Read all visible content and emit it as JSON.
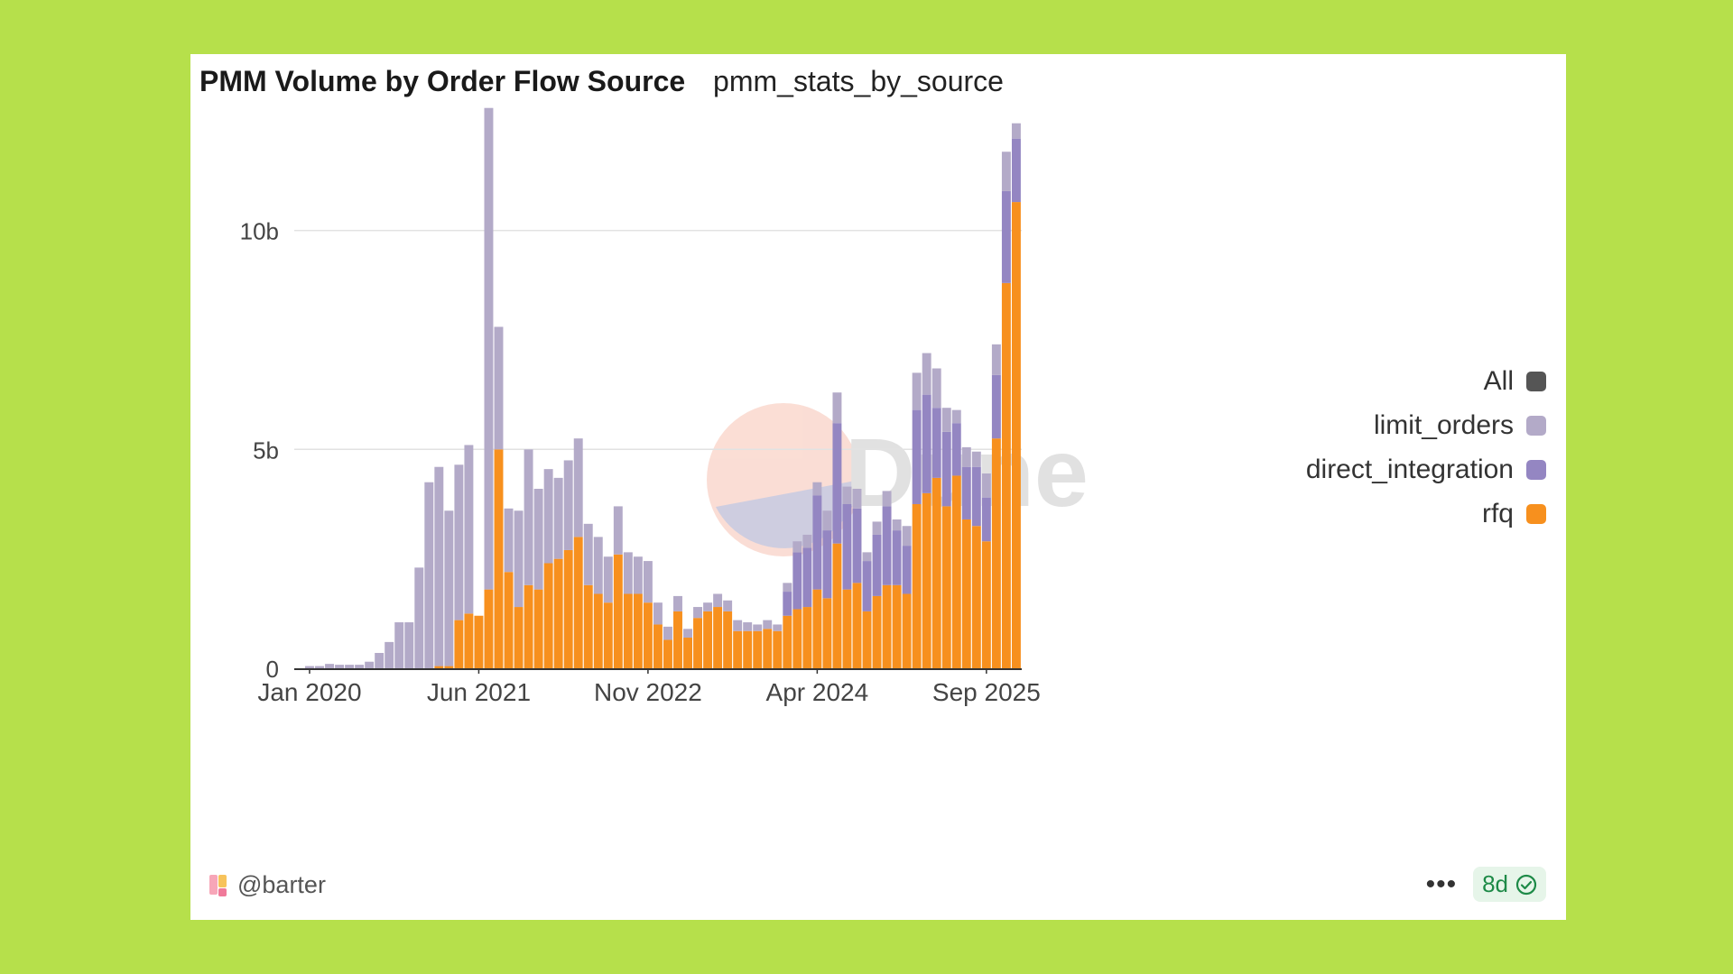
{
  "title": "PMM Volume by Order Flow Source",
  "subtitle": "pmm_stats_by_source",
  "watermark": "Dune",
  "footer": {
    "user": "@barter",
    "age_badge": "8d"
  },
  "colors": {
    "background": "#b6e04b",
    "all": "#555555",
    "limit_orders": "#b3aac8",
    "direct_integration": "#9486c2",
    "rfq": "#f7901e",
    "badge_text": "#1d8a47"
  },
  "legend": [
    {
      "label": "All",
      "color": "#555555"
    },
    {
      "label": "limit_orders",
      "color": "#b3aac8"
    },
    {
      "label": "direct_integration",
      "color": "#9486c2"
    },
    {
      "label": "rfq",
      "color": "#f7901e"
    }
  ],
  "chart_data": {
    "type": "bar",
    "stacked": true,
    "ylim": [
      0,
      13
    ],
    "yticks": [
      {
        "v": 0,
        "label": "0"
      },
      {
        "v": 5,
        "label": "5b"
      },
      {
        "v": 10,
        "label": "10b"
      }
    ],
    "xticks": [
      {
        "i": 0,
        "label": "Jan 2020"
      },
      {
        "i": 17,
        "label": "Jun 2021"
      },
      {
        "i": 34,
        "label": "Nov 2022"
      },
      {
        "i": 51,
        "label": "Apr 2024"
      },
      {
        "i": 68,
        "label": "Sep 2025"
      }
    ],
    "legend_position": "right",
    "grid": true,
    "series": [
      {
        "name": "rfq",
        "color": "#f7901e",
        "values": [
          0,
          0,
          0,
          0,
          0,
          0,
          0,
          0,
          0,
          0,
          0,
          0,
          0,
          0.05,
          0.05,
          1.1,
          1.25,
          1.2,
          1.8,
          5.0,
          2.2,
          1.4,
          1.9,
          1.8,
          2.4,
          2.5,
          2.7,
          3.0,
          1.9,
          1.7,
          1.5,
          2.6,
          1.7,
          1.7,
          1.5,
          1.0,
          0.65,
          1.3,
          0.7,
          1.15,
          1.3,
          1.4,
          1.3,
          0.85,
          0.85,
          0.85,
          0.9,
          0.85,
          1.2,
          1.35,
          1.4,
          1.8,
          1.6,
          2.85,
          1.8,
          1.95,
          1.3,
          1.65,
          1.9,
          1.9,
          1.7,
          3.75,
          4.0,
          4.35,
          3.7,
          4.4,
          3.4,
          3.25,
          2.9,
          5.25,
          8.8,
          10.65
        ]
      },
      {
        "name": "direct_integration",
        "color": "#9486c2",
        "values": [
          0,
          0,
          0,
          0,
          0,
          0,
          0,
          0,
          0,
          0,
          0,
          0,
          0,
          0,
          0,
          0,
          0,
          0,
          0,
          0,
          0,
          0,
          0,
          0,
          0,
          0,
          0,
          0,
          0,
          0,
          0,
          0,
          0,
          0,
          0,
          0,
          0,
          0,
          0,
          0,
          0,
          0,
          0,
          0,
          0,
          0,
          0,
          0,
          0.55,
          1.3,
          1.35,
          2.15,
          1.55,
          2.75,
          1.95,
          1.7,
          1.15,
          1.4,
          1.8,
          1.25,
          1.1,
          2.15,
          2.25,
          1.6,
          1.7,
          1.2,
          1.2,
          1.35,
          1.0,
          1.45,
          2.1,
          1.45
        ]
      },
      {
        "name": "limit_orders",
        "color": "#b3aac8",
        "values": [
          0.05,
          0.05,
          0.1,
          0.08,
          0.08,
          0.08,
          0.15,
          0.35,
          0.6,
          1.05,
          1.05,
          2.3,
          4.25,
          4.55,
          3.55,
          3.55,
          3.85,
          0,
          11.0,
          2.8,
          1.45,
          2.2,
          3.1,
          2.3,
          2.15,
          1.85,
          2.05,
          2.25,
          1.4,
          1.3,
          1.05,
          1.1,
          0.95,
          0.85,
          0.95,
          0.5,
          0.3,
          0.35,
          0.2,
          0.25,
          0.2,
          0.3,
          0.25,
          0.25,
          0.2,
          0.15,
          0.2,
          0.15,
          0.2,
          0.25,
          0.3,
          0.3,
          0.45,
          0.7,
          0.4,
          0.45,
          0.2,
          0.3,
          0.35,
          0.25,
          0.45,
          0.85,
          0.95,
          0.9,
          0.55,
          0.3,
          0.45,
          0.35,
          0.55,
          0.7,
          0.9,
          0.35
        ]
      }
    ]
  }
}
